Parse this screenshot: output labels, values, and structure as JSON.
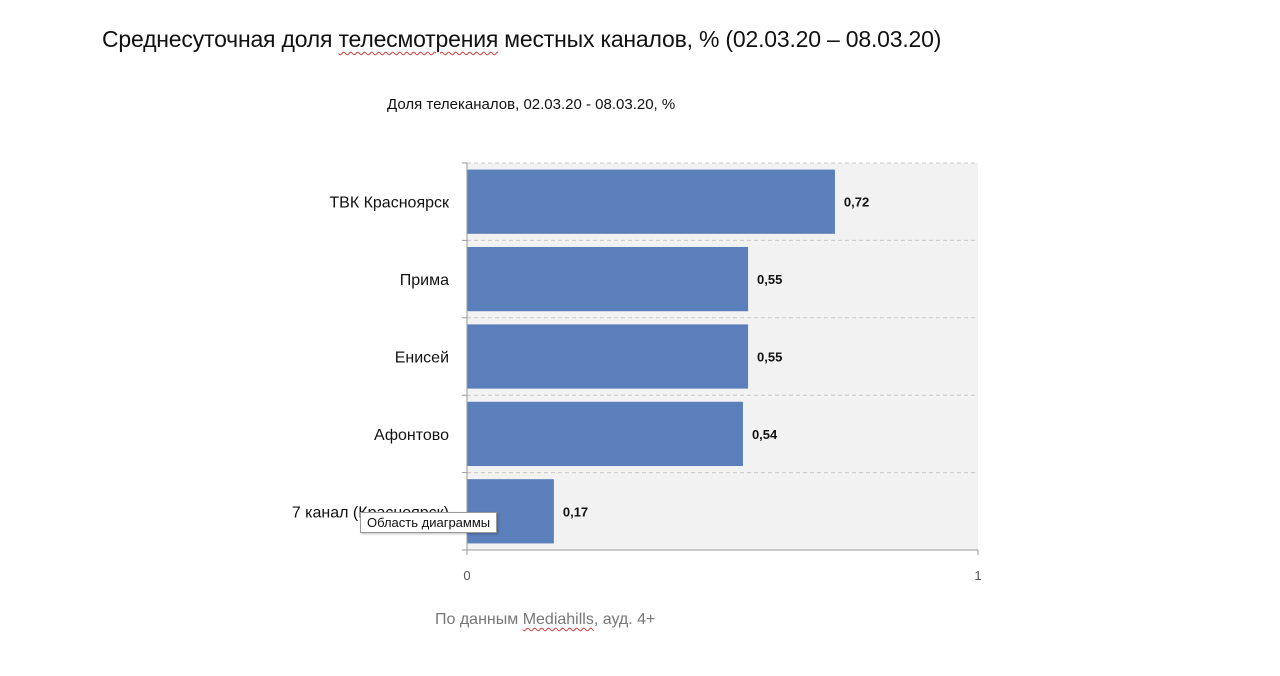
{
  "page": {
    "title_main": "Среднесуточная доля ",
    "title_underlined": "телесмотрения",
    "title_rest": " местных каналов, % (02.03.20 – 08.03.20)"
  },
  "source": {
    "prefix": "По данным ",
    "underlined": "Mediahills",
    "suffix": ", ауд. 4+"
  },
  "tooltip": {
    "label": "Область диаграммы"
  },
  "chart_data": {
    "type": "bar",
    "orientation": "horizontal",
    "title": "Доля телеканалов, 02.03.20 - 08.03.20, %",
    "categories": [
      "ТВК Красноярск",
      "Прима",
      "Енисей",
      "Афонтово",
      "7 канал (Красноярск)"
    ],
    "values": [
      0.72,
      0.55,
      0.55,
      0.54,
      0.17
    ],
    "value_labels": [
      "0,72",
      "0,55",
      "0,55",
      "0,54",
      "0,17"
    ],
    "x_ticks": [
      "0",
      "1"
    ],
    "xlim": [
      0,
      1
    ],
    "bar_color": "#5b7fba",
    "plot_background": "#f2f2f2",
    "grid": "dashed horizontal",
    "legend": "none"
  }
}
